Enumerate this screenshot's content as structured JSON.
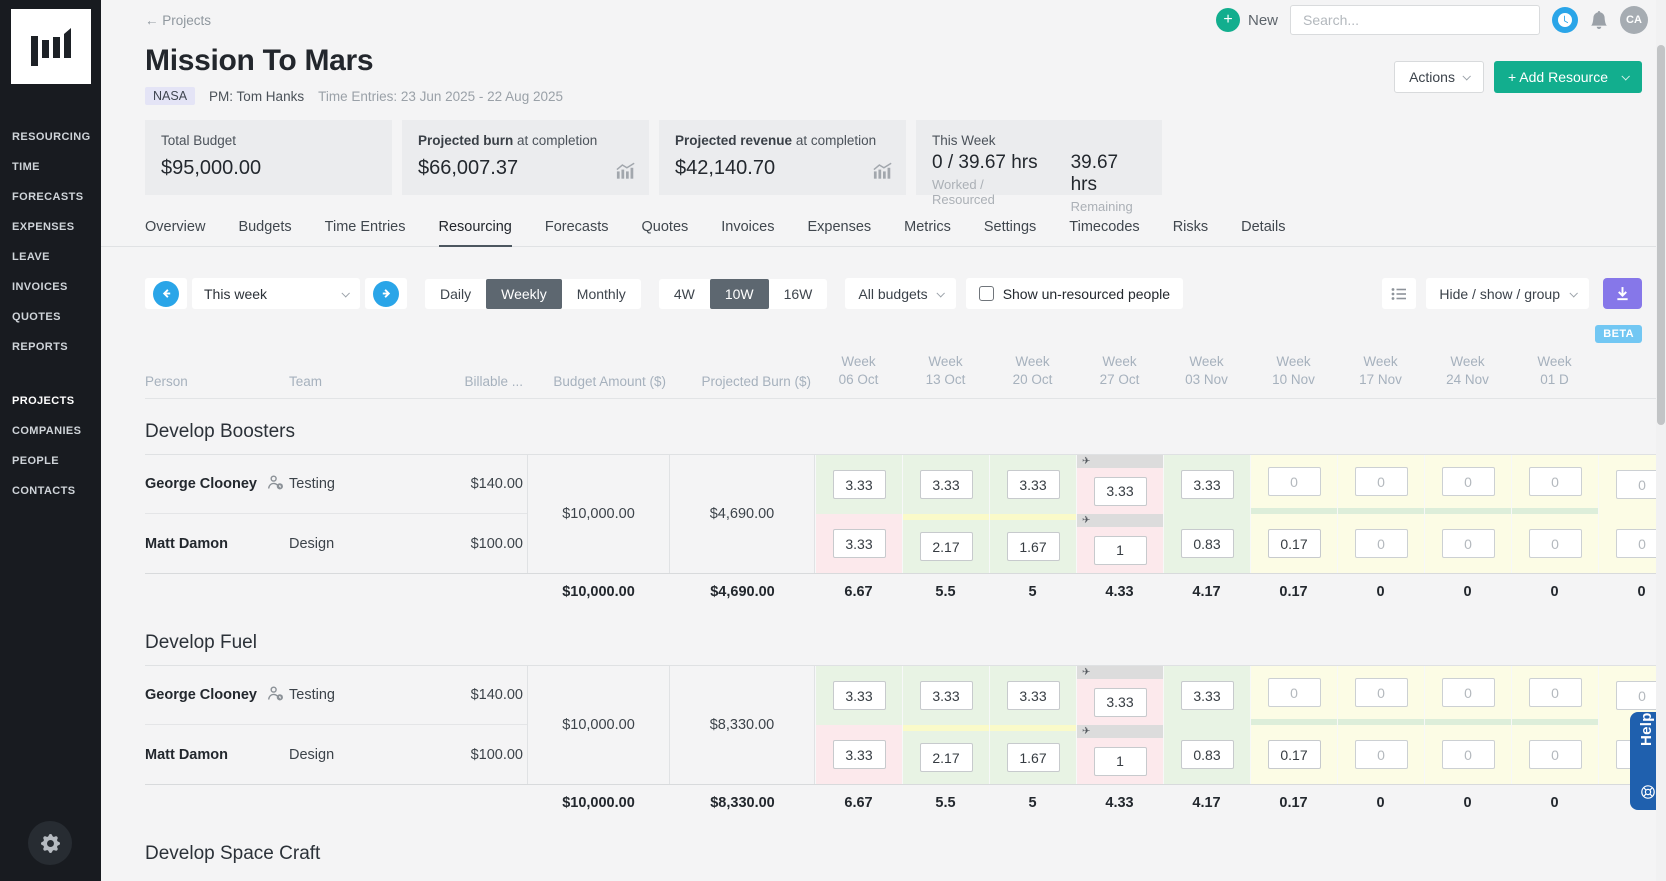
{
  "sidebar": {
    "top_items": [
      "RESOURCING",
      "TIME",
      "FORECASTS",
      "EXPENSES",
      "LEAVE",
      "INVOICES",
      "QUOTES",
      "REPORTS"
    ],
    "bottom_items": [
      "PROJECTS",
      "COMPANIES",
      "PEOPLE",
      "CONTACTS"
    ],
    "active_item": "PROJECTS"
  },
  "topbar": {
    "breadcrumb": "← Projects",
    "new_label": "New",
    "search_placeholder": "Search...",
    "avatar": "CA"
  },
  "header": {
    "title": "Mission To Mars",
    "client_badge": "NASA",
    "pm": "PM: Tom Hanks",
    "time_entries": "Time Entries: 23 Jun 2025 - 22 Aug 2025",
    "actions_label": "Actions",
    "add_resource_label": "+ Add Resource"
  },
  "stats": [
    {
      "bold": "",
      "rest": "Total Budget",
      "value": "$95,000.00"
    },
    {
      "bold": "Projected burn",
      "rest": " at completion",
      "value": "$66,007.37"
    },
    {
      "bold": "Projected revenue",
      "rest": " at completion",
      "value": "$42,140.70"
    }
  ],
  "this_week": {
    "label": "This Week",
    "worked": "0 / 39.67 hrs",
    "worked_sub": "Worked / Resourced",
    "remaining": "39.67 hrs",
    "remaining_sub": "Remaining"
  },
  "tabs": [
    "Overview",
    "Budgets",
    "Time Entries",
    "Resourcing",
    "Forecasts",
    "Quotes",
    "Invoices",
    "Expenses",
    "Metrics",
    "Settings",
    "Timecodes",
    "Risks",
    "Details"
  ],
  "active_tab": "Resourcing",
  "toolbar": {
    "period": "This week",
    "granularity": [
      "Daily",
      "Weekly",
      "Monthly"
    ],
    "granularity_active": "Weekly",
    "range": [
      "4W",
      "10W",
      "16W"
    ],
    "range_active": "10W",
    "budget_filter": "All budgets",
    "checkbox_label": "Show un-resourced people",
    "hide_show_label": "Hide / show / group",
    "beta": "BETA"
  },
  "table": {
    "columns": {
      "person": "Person",
      "team": "Team",
      "billable": "Billable ...",
      "budget": "Budget Amount ($)",
      "burn": "Projected Burn ($)"
    },
    "weeks": [
      {
        "l1": "Week",
        "l2": "06 Oct"
      },
      {
        "l1": "Week",
        "l2": "13 Oct"
      },
      {
        "l1": "Week",
        "l2": "20 Oct"
      },
      {
        "l1": "Week",
        "l2": "27 Oct"
      },
      {
        "l1": "Week",
        "l2": "03 Nov"
      },
      {
        "l1": "Week",
        "l2": "10 Nov"
      },
      {
        "l1": "Week",
        "l2": "17 Nov"
      },
      {
        "l1": "Week",
        "l2": "24 Nov"
      },
      {
        "l1": "Week",
        "l2": "01 D"
      },
      {
        "l1": "",
        "l2": ""
      }
    ],
    "groups": [
      {
        "name": "Develop Boosters",
        "budget": "$10,000.00",
        "burn": "$4,690.00",
        "rows": [
          {
            "person": "George Clooney",
            "icon": true,
            "team": "Testing",
            "billable": "$140.00",
            "cells": [
              {
                "v": "3.33",
                "bg": "green"
              },
              {
                "v": "3.33",
                "bg": "green"
              },
              {
                "v": "3.33",
                "bg": "green"
              },
              {
                "v": "3.33",
                "bg": "pink",
                "strip": "grey",
                "plane": true
              },
              {
                "v": "3.33",
                "bg": "green"
              },
              {
                "v": "0",
                "bg": "yellow",
                "strip": "green-bottom",
                "muted": true
              },
              {
                "v": "0",
                "bg": "yellow",
                "strip": "green-bottom",
                "muted": true
              },
              {
                "v": "0",
                "bg": "yellow",
                "strip": "green-bottom",
                "muted": true
              },
              {
                "v": "0",
                "bg": "yellow",
                "strip": "green-bottom",
                "muted": true
              },
              {
                "v": "0",
                "bg": "yellow",
                "muted": true
              }
            ]
          },
          {
            "person": "Matt Damon",
            "icon": false,
            "team": "Design",
            "billable": "$100.00",
            "cells": [
              {
                "v": "3.33",
                "bg": "pink"
              },
              {
                "v": "2.17",
                "bg": "green",
                "strip": "yellow-top"
              },
              {
                "v": "1.67",
                "bg": "green",
                "strip": "yellow-top"
              },
              {
                "v": "1",
                "bg": "pink",
                "strip": "grey",
                "plane": true
              },
              {
                "v": "0.83",
                "bg": "green"
              },
              {
                "v": "0.17",
                "bg": "yellow"
              },
              {
                "v": "0",
                "bg": "yellow",
                "muted": true
              },
              {
                "v": "0",
                "bg": "yellow",
                "muted": true
              },
              {
                "v": "0",
                "bg": "yellow",
                "muted": true
              },
              {
                "v": "0",
                "bg": "yellow",
                "muted": true
              }
            ]
          }
        ],
        "totals": {
          "budget": "$10,000.00",
          "burn": "$4,690.00",
          "weeks": [
            "6.67",
            "5.5",
            "5",
            "4.33",
            "4.17",
            "0.17",
            "0",
            "0",
            "0",
            "0"
          ]
        }
      },
      {
        "name": "Develop Fuel",
        "budget": "$10,000.00",
        "burn": "$8,330.00",
        "rows": [
          {
            "person": "George Clooney",
            "icon": true,
            "team": "Testing",
            "billable": "$140.00",
            "cells": [
              {
                "v": "3.33",
                "bg": "green"
              },
              {
                "v": "3.33",
                "bg": "green"
              },
              {
                "v": "3.33",
                "bg": "green"
              },
              {
                "v": "3.33",
                "bg": "pink",
                "strip": "grey",
                "plane": true
              },
              {
                "v": "3.33",
                "bg": "green"
              },
              {
                "v": "0",
                "bg": "yellow",
                "strip": "green-bottom",
                "muted": true
              },
              {
                "v": "0",
                "bg": "yellow",
                "strip": "green-bottom",
                "muted": true
              },
              {
                "v": "0",
                "bg": "yellow",
                "strip": "green-bottom",
                "muted": true
              },
              {
                "v": "0",
                "bg": "yellow",
                "strip": "green-bottom",
                "muted": true
              },
              {
                "v": "0",
                "bg": "yellow",
                "muted": true
              }
            ]
          },
          {
            "person": "Matt Damon",
            "icon": false,
            "team": "Design",
            "billable": "$100.00",
            "cells": [
              {
                "v": "3.33",
                "bg": "pink"
              },
              {
                "v": "2.17",
                "bg": "green",
                "strip": "yellow-top"
              },
              {
                "v": "1.67",
                "bg": "green",
                "strip": "yellow-top"
              },
              {
                "v": "1",
                "bg": "pink",
                "strip": "grey",
                "plane": true
              },
              {
                "v": "0.83",
                "bg": "green"
              },
              {
                "v": "0.17",
                "bg": "yellow"
              },
              {
                "v": "0",
                "bg": "yellow",
                "muted": true
              },
              {
                "v": "0",
                "bg": "yellow",
                "muted": true
              },
              {
                "v": "0",
                "bg": "yellow",
                "muted": true
              },
              {
                "v": "0",
                "bg": "yellow",
                "muted": true
              }
            ]
          }
        ],
        "totals": {
          "budget": "$10,000.00",
          "burn": "$8,330.00",
          "weeks": [
            "6.67",
            "5.5",
            "5",
            "4.33",
            "4.17",
            "0.17",
            "0",
            "0",
            "0",
            "0"
          ]
        }
      },
      {
        "name": "Develop Space Craft",
        "rows": [],
        "totals": null
      }
    ]
  },
  "help_label": "Help",
  "colors": {
    "accent_teal": "#12ae8e",
    "accent_blue": "#2aa5e8",
    "accent_purple": "#8677e9",
    "beta_blue": "#72c7f3",
    "help_blue": "#1f60ae",
    "cell_green": "#e8f3e4",
    "cell_pink": "#fce9ec",
    "cell_yellow": "#fcfce5"
  }
}
